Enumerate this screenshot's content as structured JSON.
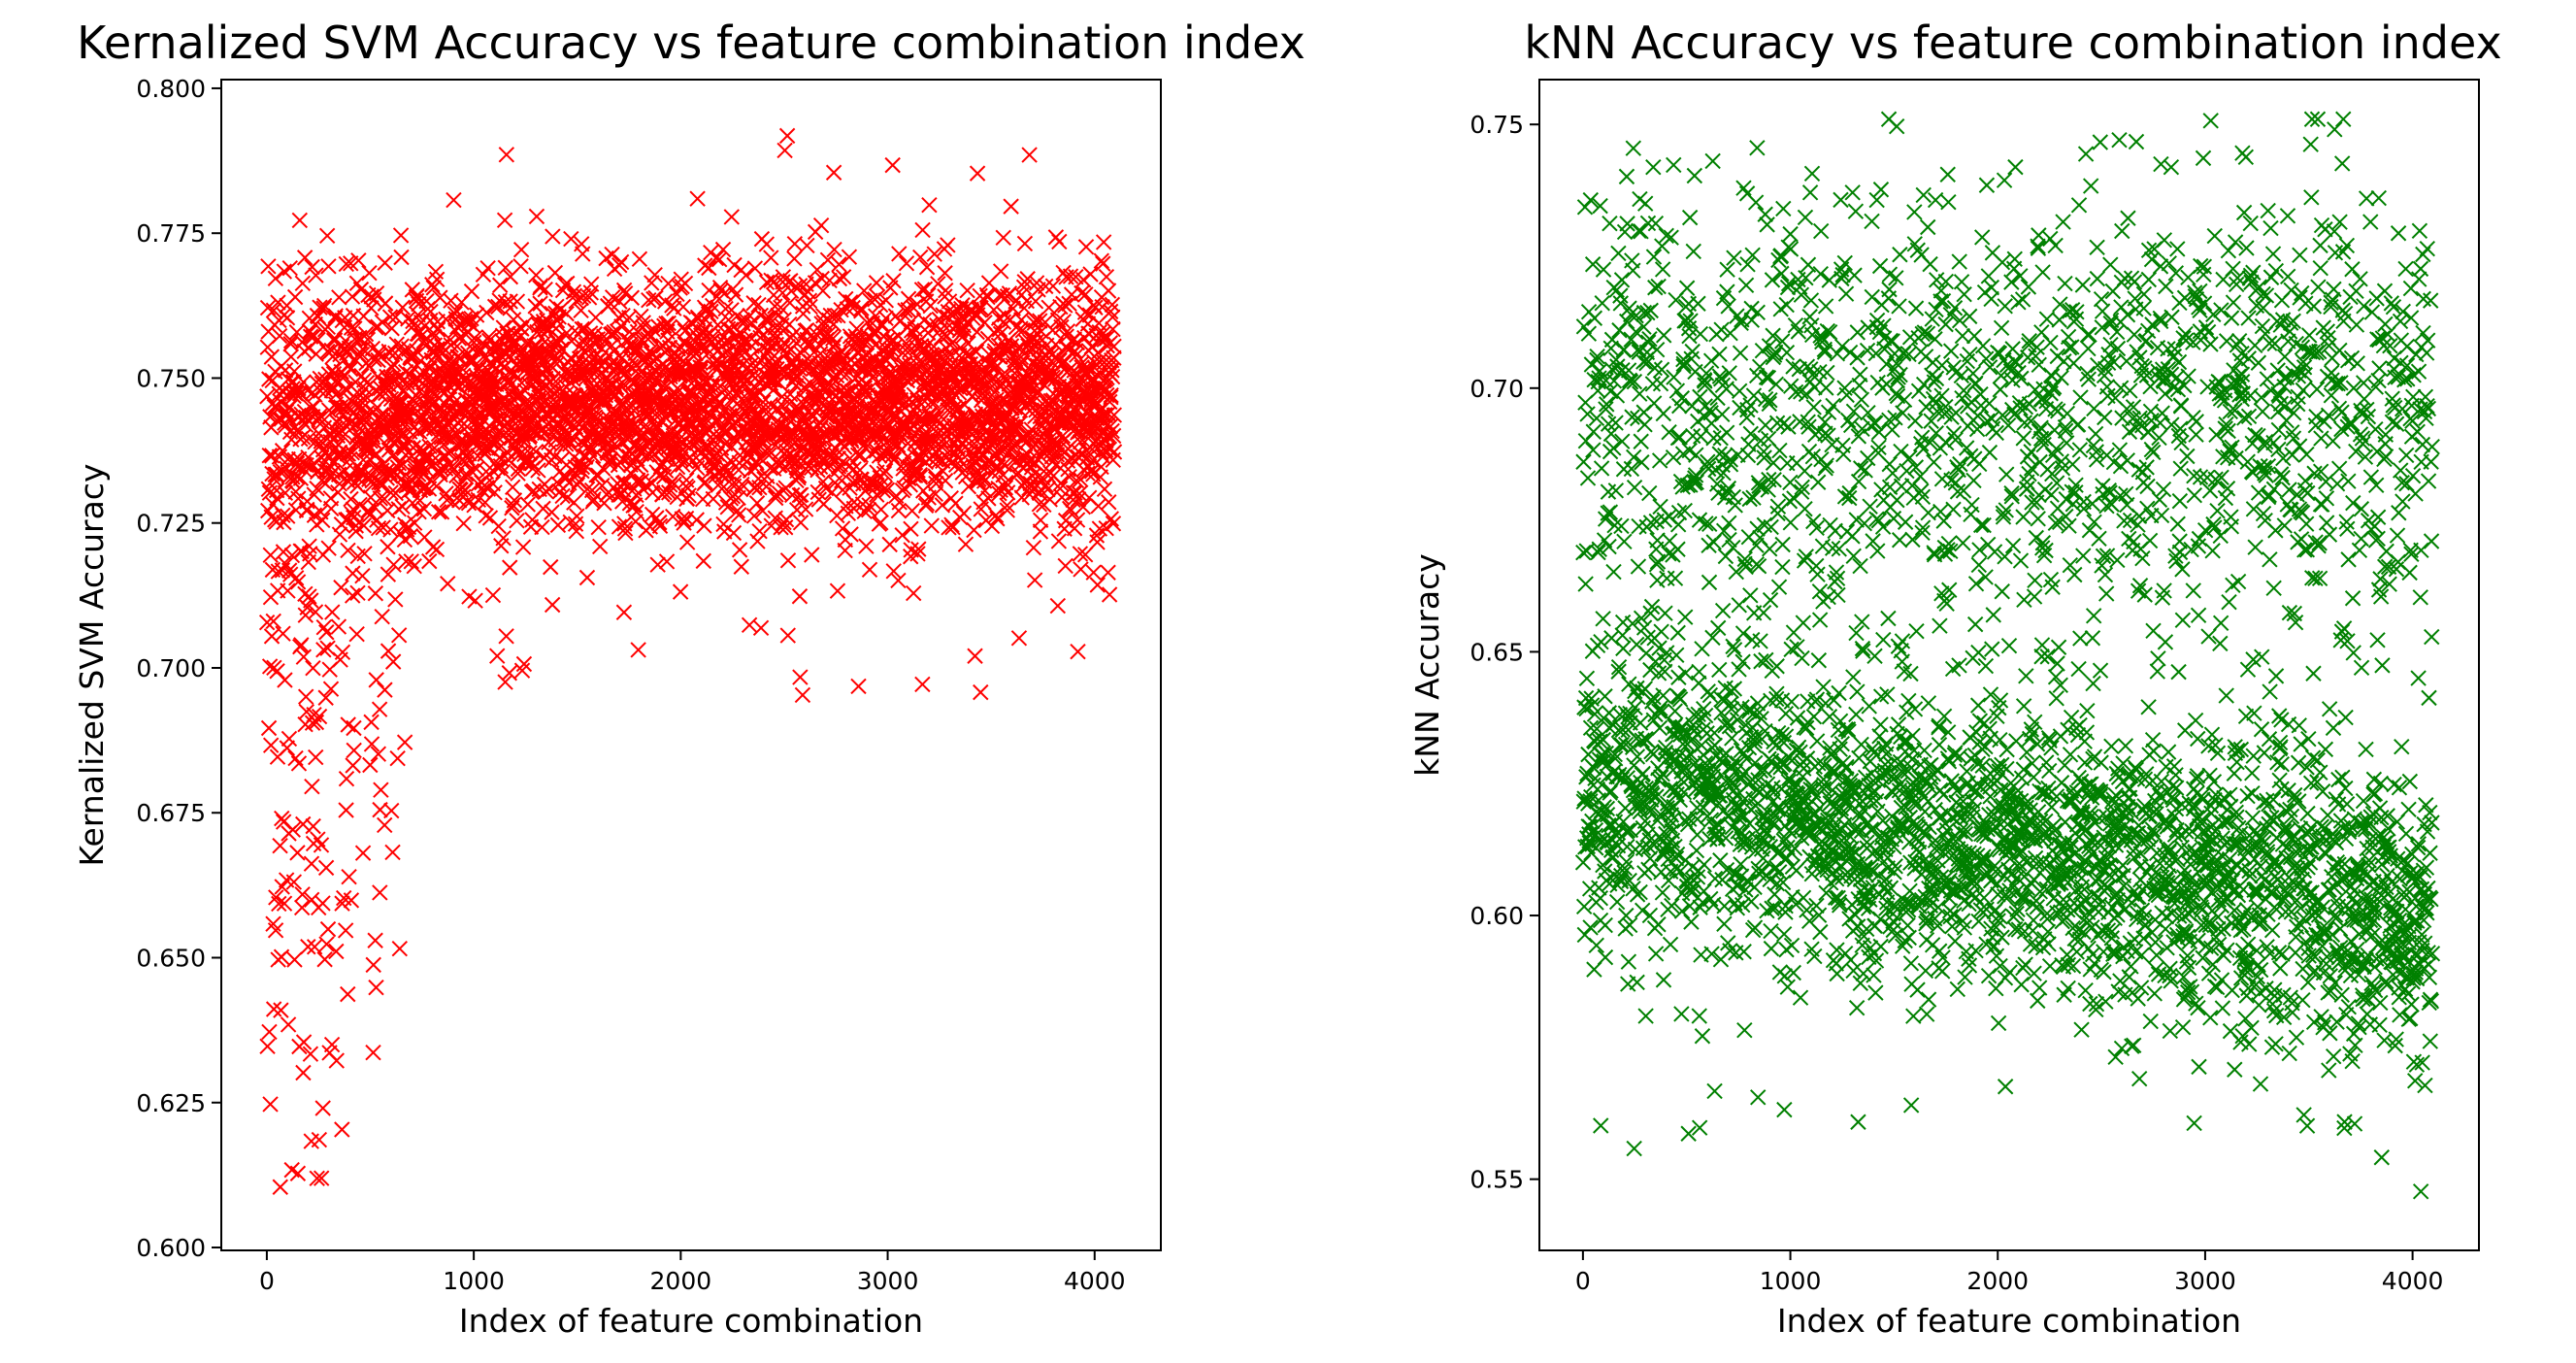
{
  "colors": {
    "background": "#ffffff",
    "svm_marker": "#ff0000",
    "knn_marker": "#008000"
  },
  "chart_data": [
    {
      "type": "scatter",
      "marker": "x",
      "color": "#ff0000",
      "title": "Kernalized SVM Accuracy vs feature combination index",
      "xlabel": "Index of feature combination",
      "ylabel": "Kernalized SVM Accuracy",
      "xlim": [
        -220,
        4320
      ],
      "ylim": [
        0.5995,
        0.8015
      ],
      "xticks": [
        0,
        1000,
        2000,
        3000,
        4000
      ],
      "xtick_labels": [
        "0",
        "1000",
        "2000",
        "3000",
        "4000"
      ],
      "yticks": [
        0.6,
        0.625,
        0.65,
        0.675,
        0.7,
        0.725,
        0.75,
        0.775,
        0.8
      ],
      "ytick_labels": [
        "0.600",
        "0.625",
        "0.650",
        "0.675",
        "0.700",
        "0.725",
        "0.750",
        "0.775",
        "0.800"
      ],
      "grid": false,
      "legend": false,
      "n_points": 4095,
      "point_count": 4095,
      "x_range": [
        1,
        4095
      ],
      "y_center": 0.745,
      "y_spread": 0.012,
      "y_min_estimate": 0.608,
      "y_max_estimate": 0.792
    },
    {
      "type": "scatter",
      "marker": "x",
      "color": "#008000",
      "title": "kNN Accuracy vs feature combination index",
      "xlabel": "Index of feature combination",
      "ylabel": "kNN Accuracy",
      "xlim": [
        -210,
        4320
      ],
      "ylim": [
        0.5365,
        0.7585
      ],
      "xticks": [
        0,
        1000,
        2000,
        3000,
        4000
      ],
      "xtick_labels": [
        "0",
        "1000",
        "2000",
        "3000",
        "4000"
      ],
      "yticks": [
        0.55,
        0.6,
        0.65,
        0.7,
        0.75
      ],
      "ytick_labels": [
        "0.55",
        "0.60",
        "0.65",
        "0.70",
        "0.75"
      ],
      "grid": false,
      "legend": false,
      "n_points": 4095,
      "x_range": [
        1,
        4095
      ],
      "lower_band_center_start": 0.625,
      "lower_band_center_end": 0.6,
      "upper_band_center": 0.695,
      "y_min_estimate": 0.546,
      "y_max_estimate": 0.751
    }
  ]
}
